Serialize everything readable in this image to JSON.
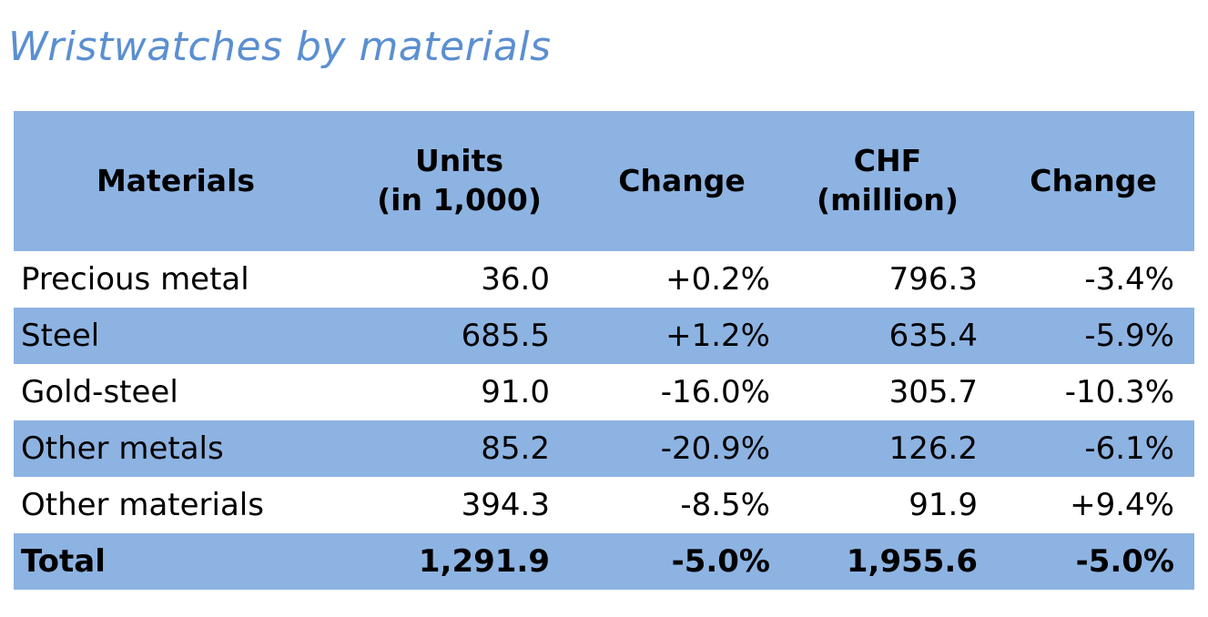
{
  "title": "Wristwatches by materials",
  "colors": {
    "title": "#5b8fd1",
    "band": "#8db3e2"
  },
  "headers": {
    "materials": "Materials",
    "units_line1": "Units",
    "units_line2": "(in 1,000)",
    "units_change": "Change",
    "chf_line1": "CHF",
    "chf_line2": "(million)",
    "chf_change": "Change"
  },
  "rows": [
    {
      "material": "Precious metal",
      "units": "36.0",
      "units_change": "+0.2%",
      "chf": "796.3",
      "chf_change": "-3.4%"
    },
    {
      "material": "Steel",
      "units": "685.5",
      "units_change": "+1.2%",
      "chf": "635.4",
      "chf_change": "-5.9%"
    },
    {
      "material": "Gold-steel",
      "units": "91.0",
      "units_change": "-16.0%",
      "chf": "305.7",
      "chf_change": "-10.3%"
    },
    {
      "material": "Other metals",
      "units": "85.2",
      "units_change": "-20.9%",
      "chf": "126.2",
      "chf_change": "-6.1%"
    },
    {
      "material": "Other materials",
      "units": "394.3",
      "units_change": "-8.5%",
      "chf": "91.9",
      "chf_change": "+9.4%"
    }
  ],
  "total": {
    "material": "Total",
    "units": "1,291.9",
    "units_change": "-5.0%",
    "chf": "1,955.6",
    "chf_change": "-5.0%"
  }
}
